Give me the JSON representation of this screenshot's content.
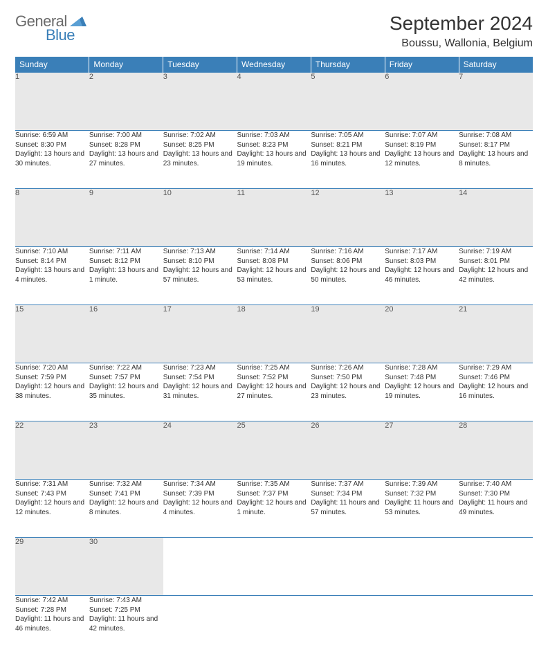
{
  "logo": {
    "word1": "General",
    "word2": "Blue"
  },
  "title": "September 2024",
  "location": "Boussu, Wallonia, Belgium",
  "colors": {
    "header_bg": "#3a7fb8",
    "header_text": "#ffffff",
    "daynum_bg": "#e8e8e8",
    "row_border": "#3a7fb8",
    "text": "#333333",
    "logo_grey": "#6a6a6a",
    "logo_blue": "#3a7fb8"
  },
  "weekdays": [
    "Sunday",
    "Monday",
    "Tuesday",
    "Wednesday",
    "Thursday",
    "Friday",
    "Saturday"
  ],
  "days": [
    {
      "n": "1",
      "sr": "6:59 AM",
      "ss": "8:30 PM",
      "dl": "13 hours and 30 minutes."
    },
    {
      "n": "2",
      "sr": "7:00 AM",
      "ss": "8:28 PM",
      "dl": "13 hours and 27 minutes."
    },
    {
      "n": "3",
      "sr": "7:02 AM",
      "ss": "8:25 PM",
      "dl": "13 hours and 23 minutes."
    },
    {
      "n": "4",
      "sr": "7:03 AM",
      "ss": "8:23 PM",
      "dl": "13 hours and 19 minutes."
    },
    {
      "n": "5",
      "sr": "7:05 AM",
      "ss": "8:21 PM",
      "dl": "13 hours and 16 minutes."
    },
    {
      "n": "6",
      "sr": "7:07 AM",
      "ss": "8:19 PM",
      "dl": "13 hours and 12 minutes."
    },
    {
      "n": "7",
      "sr": "7:08 AM",
      "ss": "8:17 PM",
      "dl": "13 hours and 8 minutes."
    },
    {
      "n": "8",
      "sr": "7:10 AM",
      "ss": "8:14 PM",
      "dl": "13 hours and 4 minutes."
    },
    {
      "n": "9",
      "sr": "7:11 AM",
      "ss": "8:12 PM",
      "dl": "13 hours and 1 minute."
    },
    {
      "n": "10",
      "sr": "7:13 AM",
      "ss": "8:10 PM",
      "dl": "12 hours and 57 minutes."
    },
    {
      "n": "11",
      "sr": "7:14 AM",
      "ss": "8:08 PM",
      "dl": "12 hours and 53 minutes."
    },
    {
      "n": "12",
      "sr": "7:16 AM",
      "ss": "8:06 PM",
      "dl": "12 hours and 50 minutes."
    },
    {
      "n": "13",
      "sr": "7:17 AM",
      "ss": "8:03 PM",
      "dl": "12 hours and 46 minutes."
    },
    {
      "n": "14",
      "sr": "7:19 AM",
      "ss": "8:01 PM",
      "dl": "12 hours and 42 minutes."
    },
    {
      "n": "15",
      "sr": "7:20 AM",
      "ss": "7:59 PM",
      "dl": "12 hours and 38 minutes."
    },
    {
      "n": "16",
      "sr": "7:22 AM",
      "ss": "7:57 PM",
      "dl": "12 hours and 35 minutes."
    },
    {
      "n": "17",
      "sr": "7:23 AM",
      "ss": "7:54 PM",
      "dl": "12 hours and 31 minutes."
    },
    {
      "n": "18",
      "sr": "7:25 AM",
      "ss": "7:52 PM",
      "dl": "12 hours and 27 minutes."
    },
    {
      "n": "19",
      "sr": "7:26 AM",
      "ss": "7:50 PM",
      "dl": "12 hours and 23 minutes."
    },
    {
      "n": "20",
      "sr": "7:28 AM",
      "ss": "7:48 PM",
      "dl": "12 hours and 19 minutes."
    },
    {
      "n": "21",
      "sr": "7:29 AM",
      "ss": "7:46 PM",
      "dl": "12 hours and 16 minutes."
    },
    {
      "n": "22",
      "sr": "7:31 AM",
      "ss": "7:43 PM",
      "dl": "12 hours and 12 minutes."
    },
    {
      "n": "23",
      "sr": "7:32 AM",
      "ss": "7:41 PM",
      "dl": "12 hours and 8 minutes."
    },
    {
      "n": "24",
      "sr": "7:34 AM",
      "ss": "7:39 PM",
      "dl": "12 hours and 4 minutes."
    },
    {
      "n": "25",
      "sr": "7:35 AM",
      "ss": "7:37 PM",
      "dl": "12 hours and 1 minute."
    },
    {
      "n": "26",
      "sr": "7:37 AM",
      "ss": "7:34 PM",
      "dl": "11 hours and 57 minutes."
    },
    {
      "n": "27",
      "sr": "7:39 AM",
      "ss": "7:32 PM",
      "dl": "11 hours and 53 minutes."
    },
    {
      "n": "28",
      "sr": "7:40 AM",
      "ss": "7:30 PM",
      "dl": "11 hours and 49 minutes."
    },
    {
      "n": "29",
      "sr": "7:42 AM",
      "ss": "7:28 PM",
      "dl": "11 hours and 46 minutes."
    },
    {
      "n": "30",
      "sr": "7:43 AM",
      "ss": "7:25 PM",
      "dl": "11 hours and 42 minutes."
    }
  ],
  "labels": {
    "sunrise": "Sunrise: ",
    "sunset": "Sunset: ",
    "daylight": "Daylight: "
  },
  "grid": {
    "start_weekday": 0,
    "total_cells": 35
  }
}
